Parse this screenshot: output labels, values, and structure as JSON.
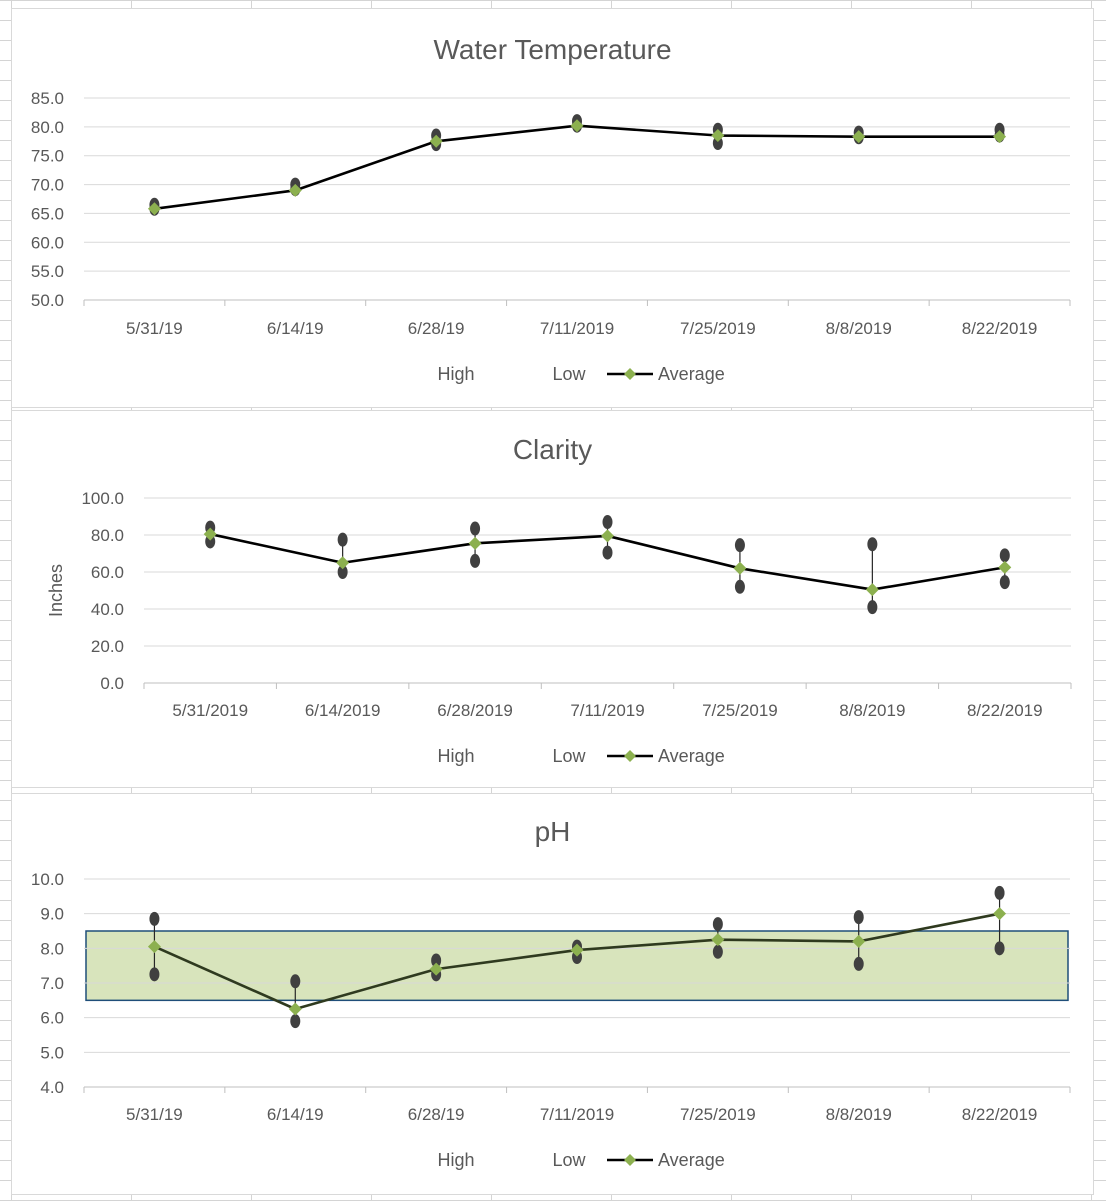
{
  "colors": {
    "gridline": "#d9d9d9",
    "axis": "#bfbfbf",
    "text": "#595959",
    "line": "#000000",
    "ph_line": "#2f3a1f",
    "marker_avg": "#8cb04f",
    "marker_hilo": "#404040",
    "range_fill": "#d8e4bc",
    "range_border": "#1f4e79"
  },
  "legend": {
    "high": "High",
    "low": "Low",
    "average": "Average"
  },
  "chart_data": [
    {
      "id": "temp",
      "type": "line",
      "title": "Water Temperature",
      "ylabel": "",
      "ylim": [
        50,
        85
      ],
      "ystep": 5,
      "categories": [
        "5/31/19",
        "6/14/19",
        "6/28/19",
        "7/11/2019",
        "7/25/2019",
        "8/8/2019",
        "8/22/2019"
      ],
      "grid": true,
      "legend_position": "bottom",
      "series": [
        {
          "name": "High",
          "values": [
            66.5,
            70.0,
            78.5,
            81.0,
            79.5,
            79.0,
            79.5
          ]
        },
        {
          "name": "Low",
          "values": [
            65.8,
            69.2,
            77.0,
            80.2,
            77.2,
            78.2,
            78.5
          ]
        },
        {
          "name": "Average",
          "values": [
            65.8,
            69.0,
            77.5,
            80.2,
            78.5,
            78.3,
            78.3
          ]
        }
      ]
    },
    {
      "id": "clarity",
      "type": "line",
      "title": "Clarity",
      "ylabel": "Inches",
      "ylim": [
        0,
        100
      ],
      "ystep": 20,
      "categories": [
        "5/31/2019",
        "6/14/2019",
        "6/28/2019",
        "7/11/2019",
        "7/25/2019",
        "8/8/2019",
        "8/22/2019"
      ],
      "grid": true,
      "legend_position": "bottom",
      "series": [
        {
          "name": "High",
          "values": [
            84.0,
            77.5,
            83.5,
            87.0,
            74.5,
            75.0,
            69.0
          ]
        },
        {
          "name": "Low",
          "values": [
            76.5,
            60.0,
            66.0,
            70.5,
            52.0,
            41.0,
            54.5
          ]
        },
        {
          "name": "Average",
          "values": [
            80.5,
            65.0,
            75.5,
            79.5,
            62.0,
            50.5,
            62.5
          ]
        }
      ]
    },
    {
      "id": "ph",
      "type": "line",
      "title": "pH",
      "ylabel": "",
      "ylim": [
        4,
        10
      ],
      "ystep": 1,
      "categories": [
        "5/31/19",
        "6/14/19",
        "6/28/19",
        "7/11/2019",
        "7/25/2019",
        "8/8/2019",
        "8/22/2019"
      ],
      "grid": true,
      "legend_position": "bottom",
      "target_range": [
        6.5,
        8.5
      ],
      "series": [
        {
          "name": "High",
          "values": [
            8.85,
            7.05,
            7.65,
            8.05,
            8.7,
            8.9,
            9.6
          ]
        },
        {
          "name": "Low",
          "values": [
            7.25,
            5.9,
            7.25,
            7.75,
            7.9,
            7.55,
            8.0
          ]
        },
        {
          "name": "Average",
          "values": [
            8.05,
            6.25,
            7.4,
            7.95,
            8.25,
            8.2,
            9.0
          ]
        }
      ]
    }
  ]
}
